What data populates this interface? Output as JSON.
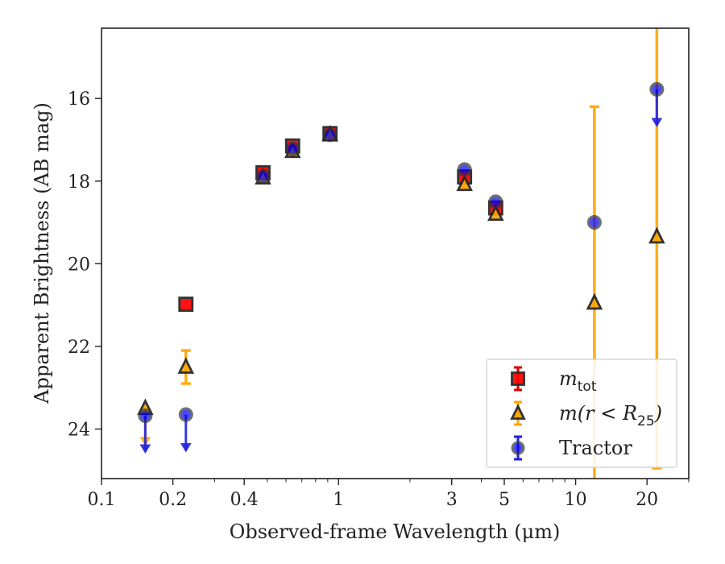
{
  "chart_data": {
    "type": "scatter",
    "title": "",
    "xlabel": "Observed-frame Wavelength (μm)",
    "ylabel": "Apparent Brightness (AB mag)",
    "xscale": "log",
    "xlim": [
      0.1,
      30
    ],
    "ylim": [
      25.2,
      14.3
    ],
    "y_inverted": true,
    "grid": false,
    "legend_position": "bottom-right",
    "x_ticks": [
      {
        "value": 0.1,
        "label": "0.1"
      },
      {
        "value": 0.2,
        "label": "0.2"
      },
      {
        "value": 0.4,
        "label": "0.4"
      },
      {
        "value": 1,
        "label": "1"
      },
      {
        "value": 3,
        "label": "3"
      },
      {
        "value": 5,
        "label": "5"
      },
      {
        "value": 10,
        "label": "10"
      },
      {
        "value": 20,
        "label": "20"
      }
    ],
    "y_ticks": [
      {
        "value": 16,
        "label": "16"
      },
      {
        "value": 18,
        "label": "18"
      },
      {
        "value": 20,
        "label": "20"
      },
      {
        "value": 22,
        "label": "22"
      },
      {
        "value": 24,
        "label": "24"
      }
    ],
    "series": [
      {
        "name": "m_tot",
        "legend_label_base": "m",
        "legend_label_sub": "tot",
        "marker": "square",
        "color": "#ff0000",
        "errcolor": "#dd0000",
        "points": [
          {
            "x": 0.227,
            "y": 20.98
          },
          {
            "x": 0.48,
            "y": 17.8
          },
          {
            "x": 0.64,
            "y": 17.15
          },
          {
            "x": 0.92,
            "y": 16.85
          },
          {
            "x": 3.4,
            "y": 17.9
          },
          {
            "x": 4.6,
            "y": 18.65
          }
        ]
      },
      {
        "name": "m(r<R25)",
        "legend_label_base": "m(r < R",
        "legend_label_sub": "25",
        "legend_label_tail": ")",
        "marker": "triangle",
        "color": "#ffa500",
        "errcolor": "#ffa500",
        "points": [
          {
            "x": 0.153,
            "y": 23.5,
            "upper_limit": true
          },
          {
            "x": 0.227,
            "y": 22.5,
            "yerr": 0.4
          },
          {
            "x": 0.48,
            "y": 17.92
          },
          {
            "x": 0.64,
            "y": 17.28
          },
          {
            "x": 0.92,
            "y": 16.88
          },
          {
            "x": 3.4,
            "y": 18.08
          },
          {
            "x": 4.6,
            "y": 18.8
          },
          {
            "x": 12.0,
            "y": 20.95,
            "yerr": 4.75
          },
          {
            "x": 22.0,
            "y": 19.35,
            "yerr": 5.6
          }
        ]
      },
      {
        "name": "Tractor",
        "legend_label_base": "Tractor",
        "marker": "circle",
        "color": "#0000ee",
        "errcolor": "#2222dd",
        "points": [
          {
            "x": 0.153,
            "y": 23.68,
            "upper_limit": true
          },
          {
            "x": 0.227,
            "y": 23.65,
            "upper_limit": true
          },
          {
            "x": 0.48,
            "y": 17.88
          },
          {
            "x": 0.64,
            "y": 17.22
          },
          {
            "x": 0.92,
            "y": 16.88
          },
          {
            "x": 3.4,
            "y": 17.72
          },
          {
            "x": 4.6,
            "y": 18.5
          },
          {
            "x": 12.0,
            "y": 19.0
          },
          {
            "x": 22.0,
            "y": 15.78,
            "upper_limit": true
          }
        ]
      }
    ]
  }
}
